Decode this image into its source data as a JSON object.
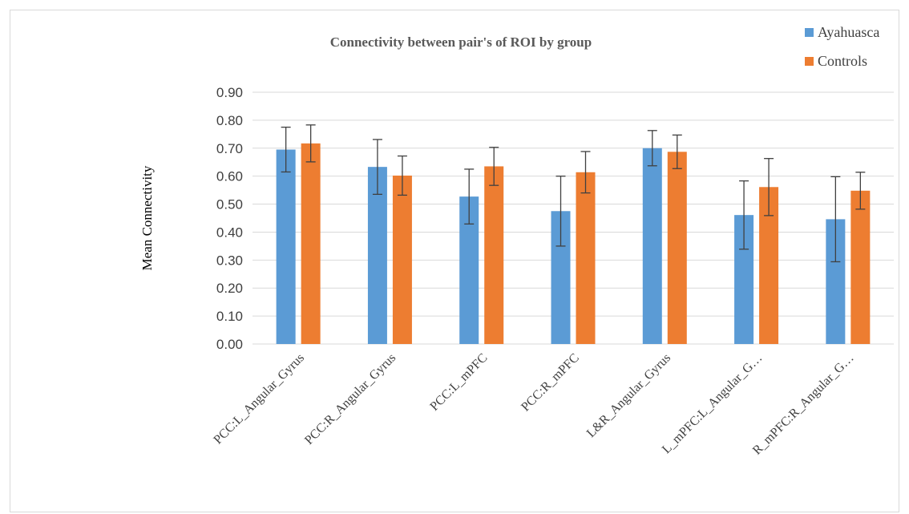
{
  "chart_data": {
    "type": "bar",
    "title": "Connectivity between pair's of ROI by group",
    "xlabel": "",
    "ylabel": "Mean Connectivity",
    "ylim": [
      0,
      0.9
    ],
    "ytick_step": 0.1,
    "ytick_labels": [
      "0.00",
      "0.10",
      "0.20",
      "0.30",
      "0.40",
      "0.50",
      "0.60",
      "0.70",
      "0.80",
      "0.90"
    ],
    "grid": true,
    "legend_position": "top-right",
    "categories": [
      "PCC:L_Angular_Gyrus",
      "PCC:R_Angular_Gyrus",
      "PCC:L_mPFC",
      "PCC:R_mPFC",
      "L&R_Angular_Gyrus",
      "L_mPFC:L_Angular_G…",
      "R_mPFC:R_Angular_G…"
    ],
    "series": [
      {
        "name": "Ayahuasca",
        "color": "#5b9bd5",
        "values": [
          0.695,
          0.633,
          0.527,
          0.475,
          0.7,
          0.461,
          0.446
        ],
        "error": [
          0.08,
          0.098,
          0.098,
          0.125,
          0.063,
          0.122,
          0.152
        ]
      },
      {
        "name": "Controls",
        "color": "#ed7d31",
        "values": [
          0.717,
          0.602,
          0.635,
          0.614,
          0.687,
          0.561,
          0.548
        ],
        "error": [
          0.066,
          0.07,
          0.068,
          0.074,
          0.06,
          0.102,
          0.066
        ]
      }
    ],
    "colors": {
      "grid": "#d9d9d9",
      "error_bar": "#404040",
      "axis": "#d9d9d9"
    }
  }
}
